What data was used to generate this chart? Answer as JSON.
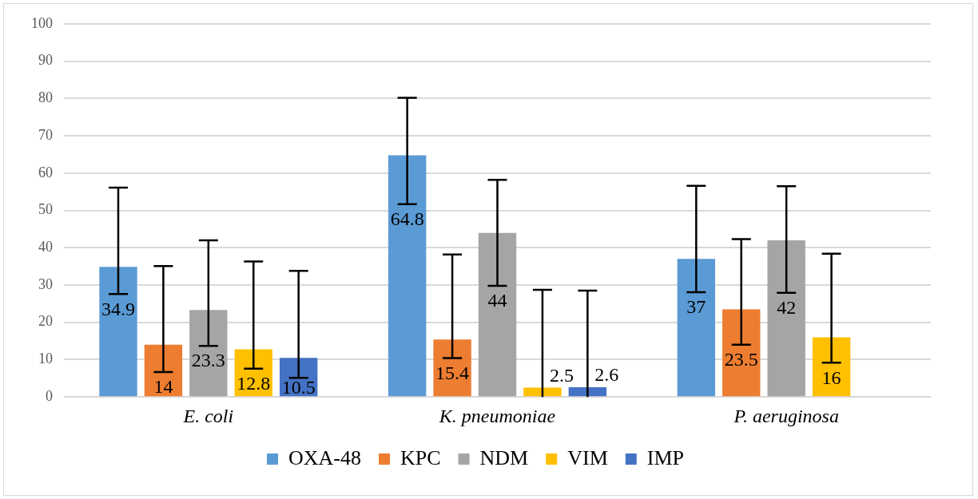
{
  "chart_data": {
    "type": "bar",
    "categories": [
      "E. coli",
      "K. pneumoniae",
      "P. aeruginosa"
    ],
    "series": [
      {
        "name": "OXA-48",
        "color": "#5b9bd5",
        "values": [
          34.9,
          64.8,
          37
        ],
        "errors": [
          [
            27.6,
            56.1
          ],
          [
            51.7,
            80.2
          ],
          [
            28.1,
            56.6
          ]
        ]
      },
      {
        "name": "KPC",
        "color": "#ed7d31",
        "values": [
          14,
          15.4,
          23.5
        ],
        "errors": [
          [
            6.7,
            35.1
          ],
          [
            10.4,
            38.2
          ],
          [
            14,
            42.3
          ]
        ]
      },
      {
        "name": "NDM",
        "color": "#a5a5a5",
        "values": [
          23.3,
          44,
          42
        ],
        "errors": [
          [
            13.7,
            42
          ],
          [
            29.8,
            58.2
          ],
          [
            27.9,
            56.5
          ]
        ]
      },
      {
        "name": "VIM",
        "color": "#ffc000",
        "values": [
          12.8,
          2.5,
          16
        ],
        "errors": [
          [
            7.6,
            36.3
          ],
          [
            0,
            28.7
          ],
          [
            9.2,
            38.4
          ]
        ]
      },
      {
        "name": "IMP",
        "color": "#4472c4",
        "values": [
          10.5,
          2.6,
          null
        ],
        "errors": [
          [
            5.1,
            33.8
          ],
          [
            0,
            28.5
          ],
          null
        ]
      }
    ],
    "ylim": [
      0,
      100
    ],
    "yticks": [
      0,
      10,
      20,
      30,
      40,
      50,
      60,
      70,
      80,
      90,
      100
    ],
    "grid": "y",
    "legend": "bottom",
    "data_labels": true
  }
}
